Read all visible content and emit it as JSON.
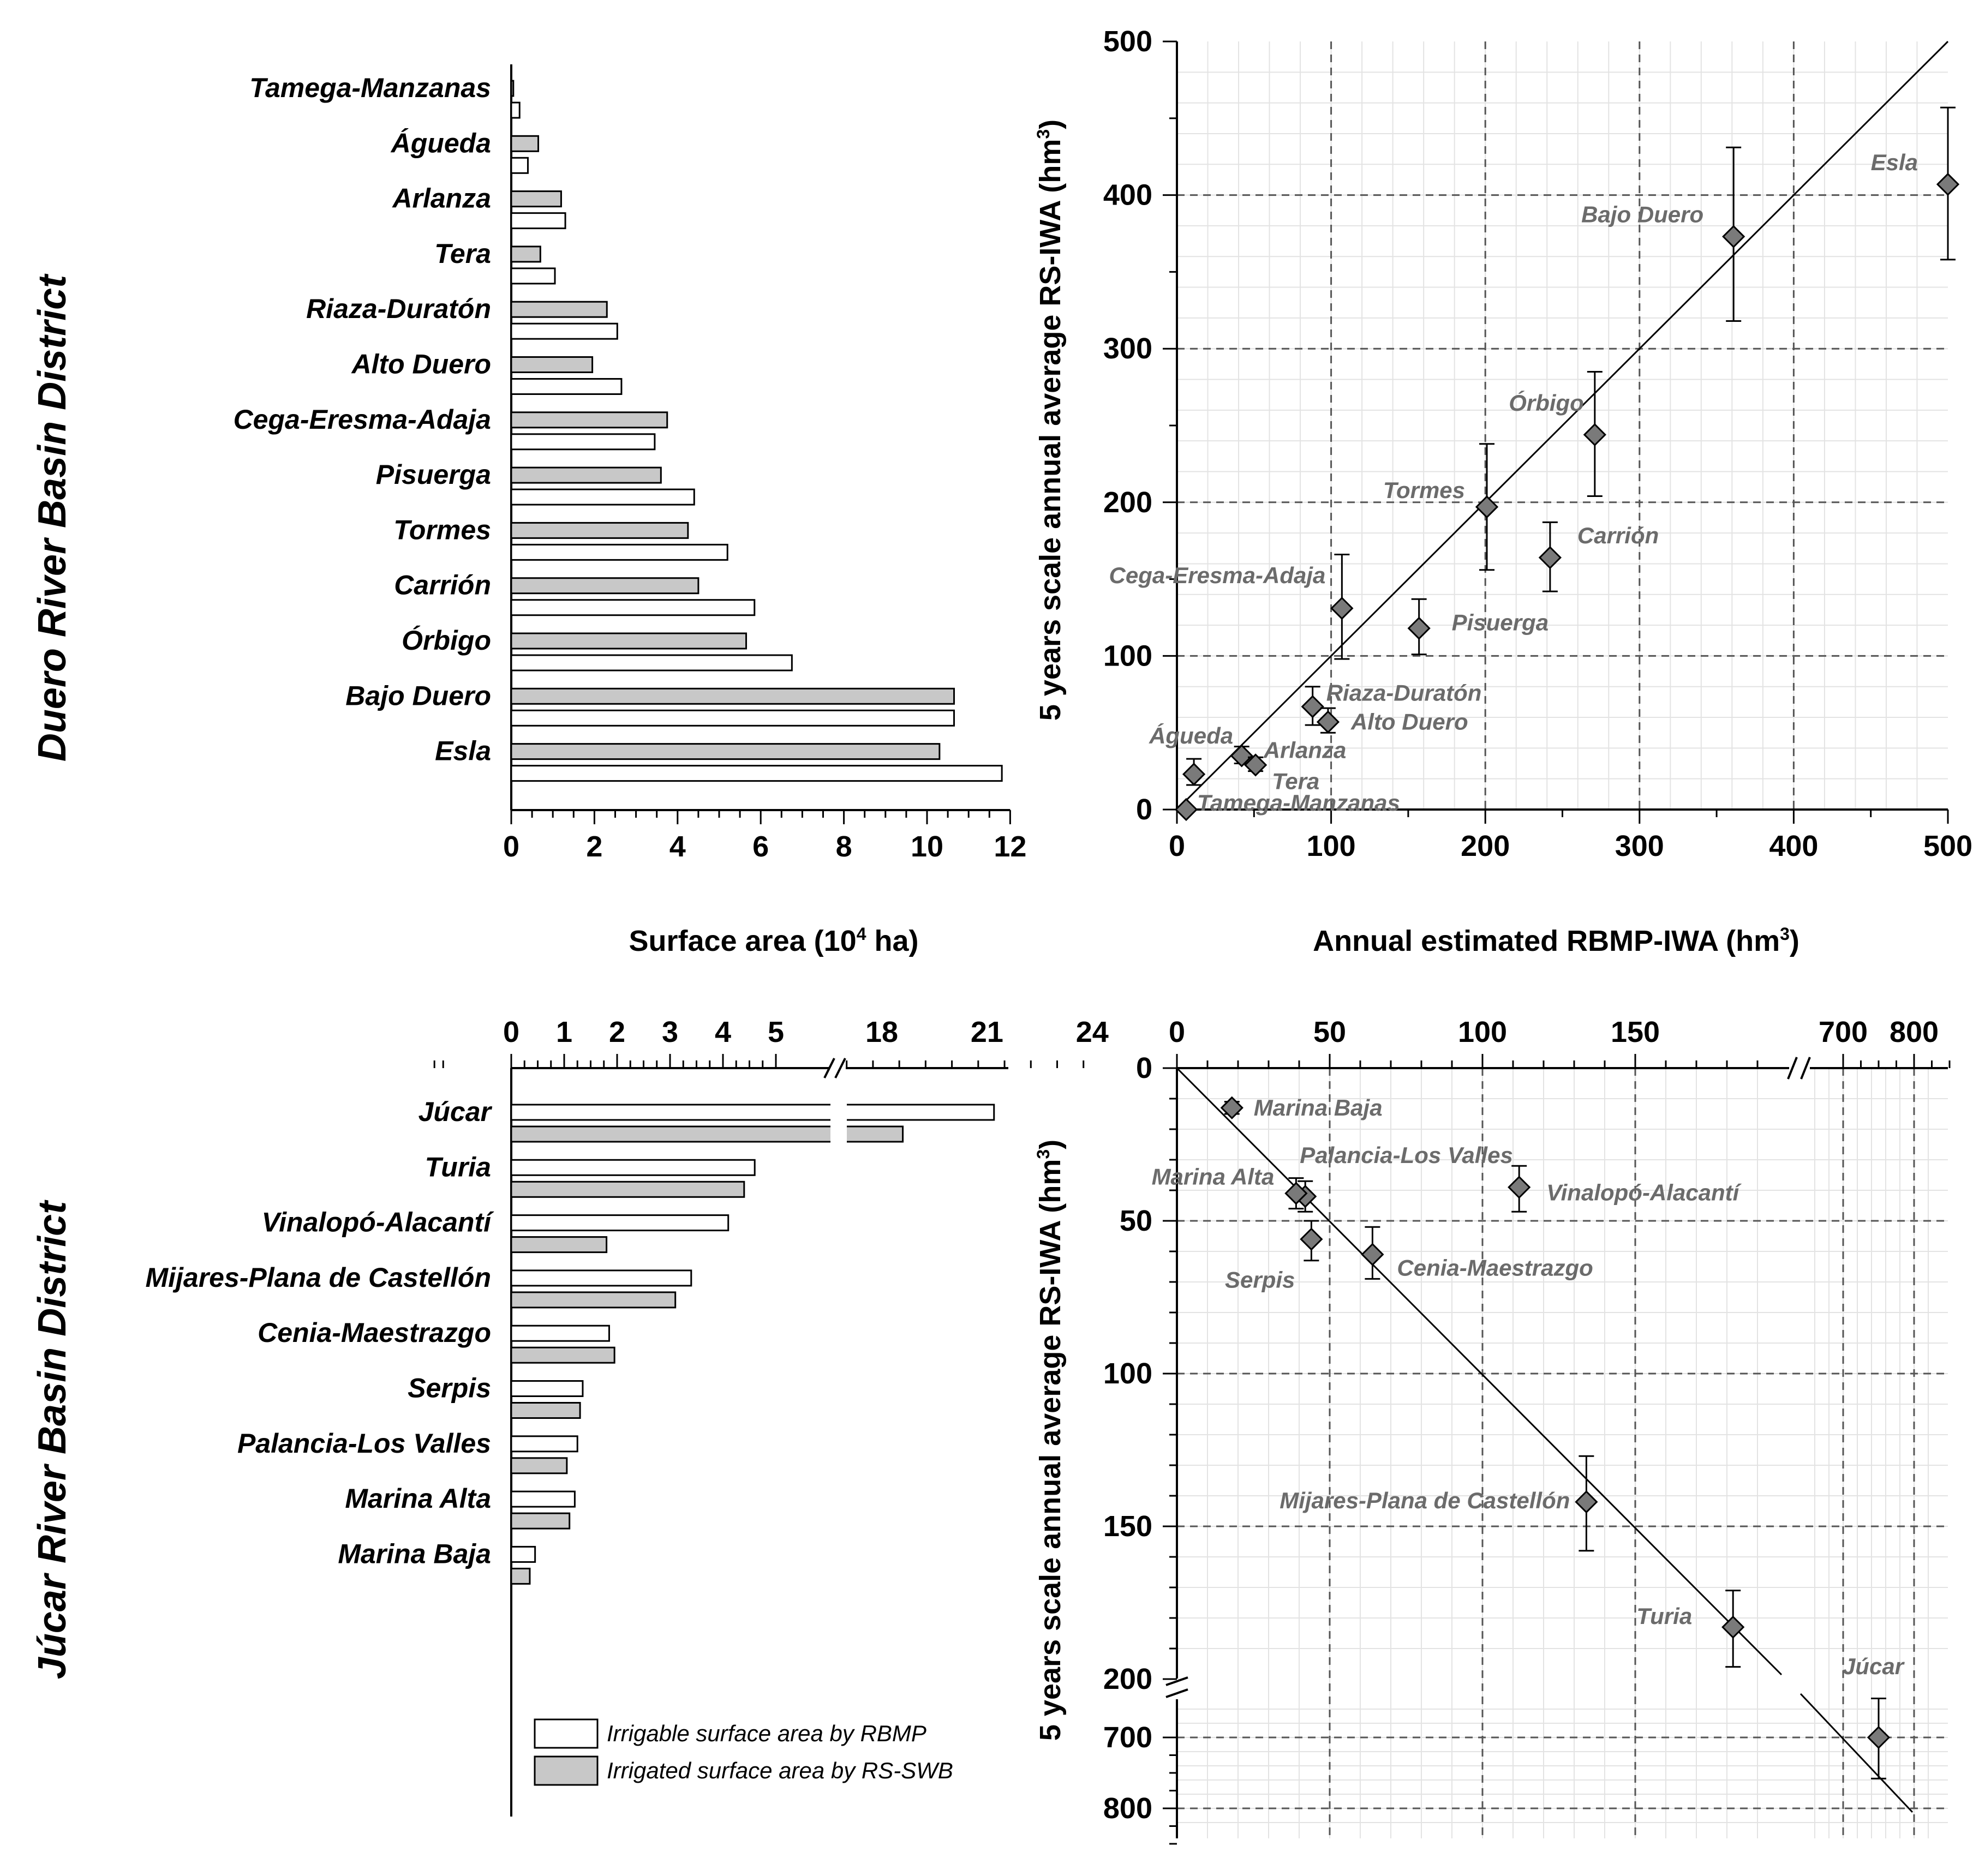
{
  "colors": {
    "rbmp_fill": "#ffffff",
    "rs_fill": "#c8c8c8",
    "marker": "#7a7a7a",
    "gridline": "#555555",
    "minorgrid": "#e3e3e3"
  },
  "legend": {
    "rbmp": "Irrigable surface area by RBMP",
    "rs": "Irrigated surface area by RS-SWB"
  },
  "labels": {
    "duero_district": "Duero River Basin District",
    "jucar_district": "Júcar River Basin District",
    "surface_area_title": "Surface area (10",
    "surface_area_sup": "4",
    "surface_area_unit": " ha)",
    "x_scatter_title": "Annual estimated RBMP-IWA (hm",
    "y_scatter_title": "5 years scale annual average RS-IWA (hm",
    "sup3": "3",
    "close_paren": ")"
  },
  "chart_data": [
    {
      "id": "duero_bars",
      "type": "bar",
      "orientation": "horizontal",
      "xlabel": "Surface area (10^4 ha)",
      "xlim": [
        0,
        12
      ],
      "xticks": [
        0,
        2,
        4,
        6,
        8,
        10,
        12
      ],
      "categories": [
        "Tamega-Manzanas",
        "Águeda",
        "Arlanza",
        "Tera",
        "Riaza-Duratón",
        "Alto Duero",
        "Cega-Eresma-Adaja",
        "Pisuerga",
        "Tormes",
        "Carrión",
        "Órbigo",
        "Bajo Duero",
        "Esla"
      ],
      "series": [
        {
          "name": "Irrigated surface area by RS-SWB",
          "values": [
            0.05,
            0.65,
            1.2,
            0.7,
            2.3,
            1.95,
            3.75,
            3.6,
            4.25,
            4.5,
            5.65,
            10.65,
            10.3
          ]
        },
        {
          "name": "Irrigable surface area by RBMP",
          "values": [
            0.2,
            0.4,
            1.3,
            1.05,
            2.55,
            2.65,
            3.45,
            4.4,
            5.2,
            5.85,
            6.75,
            10.65,
            11.8
          ]
        }
      ]
    },
    {
      "id": "duero_scatter",
      "type": "scatter",
      "xlabel": "Annual estimated RBMP-IWA (hm3)",
      "ylabel": "5 years scale annual average RS-IWA (hm3)",
      "xlim": [
        0,
        500
      ],
      "ylim": [
        0,
        500
      ],
      "xticks": [
        0,
        100,
        200,
        300,
        400,
        500
      ],
      "yticks": [
        0,
        100,
        200,
        300,
        400,
        500
      ],
      "identity_line": true,
      "points": [
        {
          "name": "Esla",
          "x": 500,
          "y": 407,
          "lo": 358,
          "hi": 457
        },
        {
          "name": "Bajo Duero",
          "x": 361,
          "y": 373,
          "lo": 318,
          "hi": 431
        },
        {
          "name": "Órbigo",
          "x": 271,
          "y": 244,
          "lo": 204,
          "hi": 285
        },
        {
          "name": "Tormes",
          "x": 201,
          "y": 197,
          "lo": 156,
          "hi": 238
        },
        {
          "name": "Carrión",
          "x": 242,
          "y": 164,
          "lo": 142,
          "hi": 187
        },
        {
          "name": "Pisuerga",
          "x": 157,
          "y": 118,
          "lo": 101,
          "hi": 137
        },
        {
          "name": "Cega-Eresma-Adaja",
          "x": 107,
          "y": 131,
          "lo": 98,
          "hi": 166
        },
        {
          "name": "Riaza-Duratón",
          "x": 88,
          "y": 67,
          "lo": 55,
          "hi": 80
        },
        {
          "name": "Alto Duero",
          "x": 98,
          "y": 57,
          "lo": 50,
          "hi": 66
        },
        {
          "name": "Arlanza",
          "x": 42,
          "y": 35,
          "lo": 30,
          "hi": 41
        },
        {
          "name": "Tera",
          "x": 51,
          "y": 29,
          "lo": 25,
          "hi": 34
        },
        {
          "name": "Águeda",
          "x": 11,
          "y": 23,
          "lo": 16,
          "hi": 33
        },
        {
          "name": "Tamega-Manzanas",
          "x": 6,
          "y": 0,
          "lo": 0,
          "hi": 2
        }
      ]
    },
    {
      "id": "jucar_bars",
      "type": "bar",
      "orientation": "horizontal",
      "xlabel": "Surface area (10^4 ha)",
      "x_axis_break": [
        5,
        18
      ],
      "xticks": [
        0,
        1,
        2,
        3,
        4,
        5,
        18,
        21,
        24
      ],
      "categories": [
        "Júcar",
        "Turia",
        "Vinalopó-Alacantí",
        "Mijares-Plana de Castellón",
        "Cenia-Maestrazgo",
        "Serpis",
        "Palancia-Los Valles",
        "Marina Alta",
        "Marina Baja"
      ],
      "series": [
        {
          "name": "Irrigable surface area by RBMP",
          "values": [
            21.2,
            4.6,
            4.1,
            3.4,
            1.85,
            1.35,
            1.25,
            1.2,
            0.45
          ]
        },
        {
          "name": "Irrigated surface area by RS-SWB",
          "values": [
            18.6,
            4.4,
            1.8,
            3.1,
            1.95,
            1.3,
            1.05,
            1.1,
            0.35
          ]
        }
      ]
    },
    {
      "id": "jucar_scatter",
      "type": "scatter",
      "xlabel": "Annual estimated RBMP-IWA (hm3)",
      "ylabel": "5 years scale annual average RS-IWA (hm3)",
      "x_axis_break": [
        200,
        700
      ],
      "y_axis_break": [
        200,
        700
      ],
      "xticks": [
        0,
        50,
        100,
        150,
        700,
        800
      ],
      "yticks": [
        0,
        50,
        100,
        150,
        200,
        700,
        800
      ],
      "y_inverted": true,
      "identity_line": true,
      "points": [
        {
          "name": "Júcar",
          "x": 750,
          "y": 700,
          "lo": 645,
          "hi": 758
        },
        {
          "name": "Turia",
          "x": 182,
          "y": 183,
          "lo": 171,
          "hi": 196
        },
        {
          "name": "Mijares-Plana de Castellón",
          "x": 134,
          "y": 142,
          "lo": 127,
          "hi": 158
        },
        {
          "name": "Cenia-Maestrazgo",
          "x": 64,
          "y": 61,
          "lo": 52,
          "hi": 69
        },
        {
          "name": "Vinalopó-Alacantí",
          "x": 112,
          "y": 39,
          "lo": 32,
          "hi": 47
        },
        {
          "name": "Serpis",
          "x": 44,
          "y": 56,
          "lo": 50,
          "hi": 63
        },
        {
          "name": "Palancia-Los Valles",
          "x": 42,
          "y": 42,
          "lo": 37,
          "hi": 47
        },
        {
          "name": "Marina Alta",
          "x": 39,
          "y": 41,
          "lo": 36,
          "hi": 46
        },
        {
          "name": "Marina Baja",
          "x": 18,
          "y": 13,
          "lo": 11,
          "hi": 15
        }
      ]
    }
  ]
}
